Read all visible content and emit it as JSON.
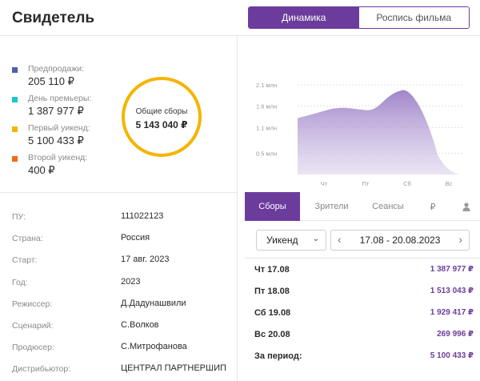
{
  "header": {
    "title": "Свидетель"
  },
  "view_switch": [
    {
      "label": "Динамика",
      "active": true
    },
    {
      "label": "Роспись фильма",
      "active": false
    }
  ],
  "legend": [
    {
      "label": "Предпродажи:",
      "value": "205 110 ₽",
      "color": "#4a5fb0"
    },
    {
      "label": "День премьеры:",
      "value": "1 387 977 ₽",
      "color": "#1bc5cf"
    },
    {
      "label": "Первый уикенд:",
      "value": "5 100 433 ₽",
      "color": "#f5b400"
    },
    {
      "label": "Второй уикенд:",
      "value": "400 ₽",
      "color": "#f26b16"
    }
  ],
  "total": {
    "label": "Общие сборы",
    "value": "5 143 040 ₽"
  },
  "info": [
    {
      "key": "ПУ:",
      "value": "111022123"
    },
    {
      "key": "Страна:",
      "value": "Россия"
    },
    {
      "key": "Старт:",
      "value": "17 авг. 2023"
    },
    {
      "key": "Год:",
      "value": "2023"
    },
    {
      "key": "Режиссер:",
      "value": "Д.Дадунашвили"
    },
    {
      "key": "Сценарий:",
      "value": "С.Волков"
    },
    {
      "key": "Продюсер:",
      "value": "С.Митрофанова"
    },
    {
      "key": "Дистрибьютор:",
      "value": "ЦЕНТРАЛ ПАРТНЕРШИП"
    }
  ],
  "chart_data": {
    "type": "area",
    "categories": [
      "Чт",
      "Пт",
      "Сб",
      "Вс"
    ],
    "series": [
      {
        "values": [
          1.39,
          1.51,
          1.93,
          0.27
        ]
      }
    ],
    "yticks": [
      "0.5 млн",
      "1.1 млн",
      "1.6 млн",
      "2.1 млн"
    ],
    "ytick_values": [
      0.5,
      1.1,
      1.6,
      2.1
    ],
    "ylim": [
      0,
      2.4
    ],
    "color": "#a98fd0",
    "grid": true
  },
  "tabs": [
    {
      "label": "Сборы",
      "active": true
    },
    {
      "label": "Зрители",
      "active": false
    },
    {
      "label": "Сеансы",
      "active": false
    },
    {
      "label": "₽",
      "icon": "ruble-icon",
      "active": false
    },
    {
      "label": "",
      "icon": "user-icon",
      "active": false
    }
  ],
  "period": {
    "selected": "Уикенд"
  },
  "date_range": "17.08 - 20.08.2023",
  "rows": [
    {
      "day": "Чт 17.08",
      "value": "1 387 977 ₽"
    },
    {
      "day": "Пт 18.08",
      "value": "1 513 043 ₽"
    },
    {
      "day": "Сб 19.08",
      "value": "1 929 417 ₽"
    },
    {
      "day": "Вс 20.08",
      "value": "269 996 ₽"
    },
    {
      "day": "За период:",
      "value": "5 100 433 ₽"
    }
  ],
  "colors": {
    "accent": "#6c3c9d",
    "donut": "#f5b400"
  }
}
